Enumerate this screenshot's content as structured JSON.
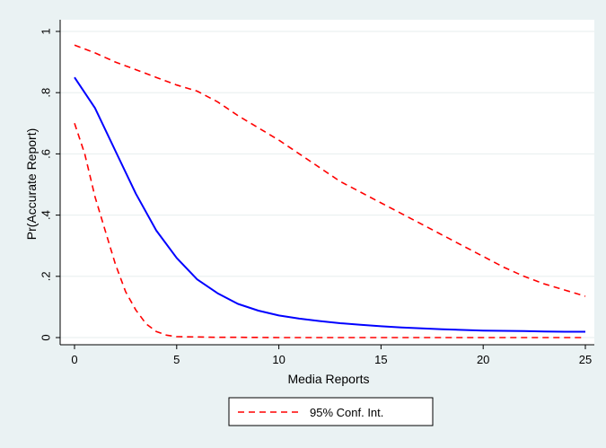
{
  "chart_data": {
    "type": "line",
    "title": "",
    "xlabel": "Media Reports",
    "ylabel": "Pr(Accurate Report)",
    "xlim": [
      0,
      25
    ],
    "ylim": [
      0,
      1
    ],
    "x_ticks": [
      0,
      5,
      10,
      15,
      20,
      25
    ],
    "y_ticks": [
      0,
      0.2,
      0.4,
      0.6,
      0.8,
      1
    ],
    "x_tick_labels": [
      "0",
      "5",
      "10",
      "15",
      "20",
      "25"
    ],
    "y_tick_labels": [
      "0",
      ".2",
      ".4",
      ".6",
      ".8",
      "1"
    ],
    "grid": "horizontal",
    "legend": {
      "placement": "bottom",
      "entries": [
        "95% Conf. Int."
      ]
    },
    "series": [
      {
        "role": "estimate",
        "color": "#0000ff",
        "style": "solid",
        "x": [
          0,
          1,
          2,
          3,
          4,
          5,
          6,
          7,
          8,
          9,
          10,
          11,
          12,
          13,
          14,
          15,
          16,
          17,
          18,
          19,
          20,
          21,
          22,
          23,
          24,
          25
        ],
        "y": [
          0.85,
          0.75,
          0.61,
          0.47,
          0.35,
          0.26,
          0.19,
          0.145,
          0.11,
          0.088,
          0.072,
          0.062,
          0.054,
          0.047,
          0.042,
          0.037,
          0.033,
          0.03,
          0.027,
          0.025,
          0.023,
          0.022,
          0.021,
          0.02,
          0.019,
          0.019
        ]
      },
      {
        "name": "95% Conf. Int.",
        "role": "ci-upper",
        "color": "#ff0000",
        "style": "dashed",
        "x": [
          0,
          1,
          2,
          3,
          4,
          5,
          6,
          7,
          8,
          9,
          10,
          11,
          12,
          13,
          14,
          15,
          16,
          17,
          18,
          19,
          20,
          21,
          22,
          23,
          24,
          25
        ],
        "y": [
          0.955,
          0.93,
          0.9,
          0.875,
          0.85,
          0.825,
          0.805,
          0.77,
          0.725,
          0.685,
          0.645,
          0.6,
          0.555,
          0.51,
          0.475,
          0.44,
          0.405,
          0.37,
          0.335,
          0.3,
          0.265,
          0.23,
          0.2,
          0.175,
          0.155,
          0.135
        ]
      },
      {
        "name": "95% Conf. Int.",
        "role": "ci-lower",
        "color": "#ff0000",
        "style": "dashed",
        "x": [
          0,
          0.5,
          1,
          1.5,
          2,
          2.5,
          3,
          3.5,
          4,
          4.5,
          5,
          6,
          7,
          8,
          10,
          12,
          15,
          20,
          25
        ],
        "y": [
          0.7,
          0.6,
          0.46,
          0.35,
          0.24,
          0.15,
          0.09,
          0.045,
          0.02,
          0.008,
          0.003,
          0.002,
          0.001,
          0.001,
          0,
          0,
          0,
          0,
          0
        ]
      }
    ]
  }
}
